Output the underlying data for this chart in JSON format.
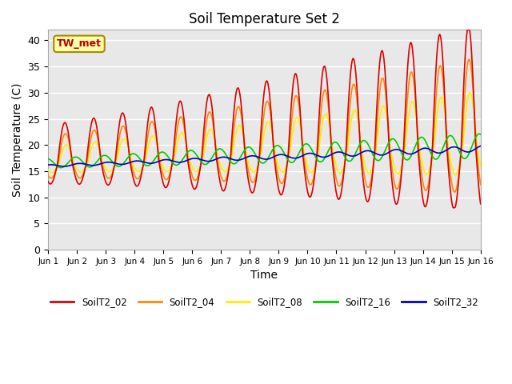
{
  "title": "Soil Temperature Set 2",
  "xlabel": "Time",
  "ylabel": "Soil Temperature (C)",
  "ylim": [
    0,
    42
  ],
  "xlim": [
    0,
    15
  ],
  "plot_bg": "#e8e8e8",
  "fig_bg": "#ffffff",
  "annotation": "TW_met",
  "annotation_color": "#bb0000",
  "annotation_bg": "#ffffaa",
  "annotation_border": "#aa8800",
  "series_colors": {
    "SoilT2_02": "#dd0000",
    "SoilT2_04": "#ff8800",
    "SoilT2_08": "#ffee00",
    "SoilT2_16": "#00cc00",
    "SoilT2_32": "#0000cc"
  },
  "xtick_labels": [
    "Jun 1",
    "Jun 2",
    "Jun 3",
    "Jun 4",
    "Jun 5",
    "Jun 6",
    "Jun 7",
    "Jun 8",
    "Jun 9",
    "Jun 10",
    "Jun 11",
    "Jun 12",
    "Jun 13",
    "Jun 14",
    "Jun 15",
    "Jun 16"
  ],
  "ytick_values": [
    0,
    5,
    10,
    15,
    20,
    25,
    30,
    35,
    40
  ],
  "grid_color": "#ffffff",
  "linewidth": 1.2
}
